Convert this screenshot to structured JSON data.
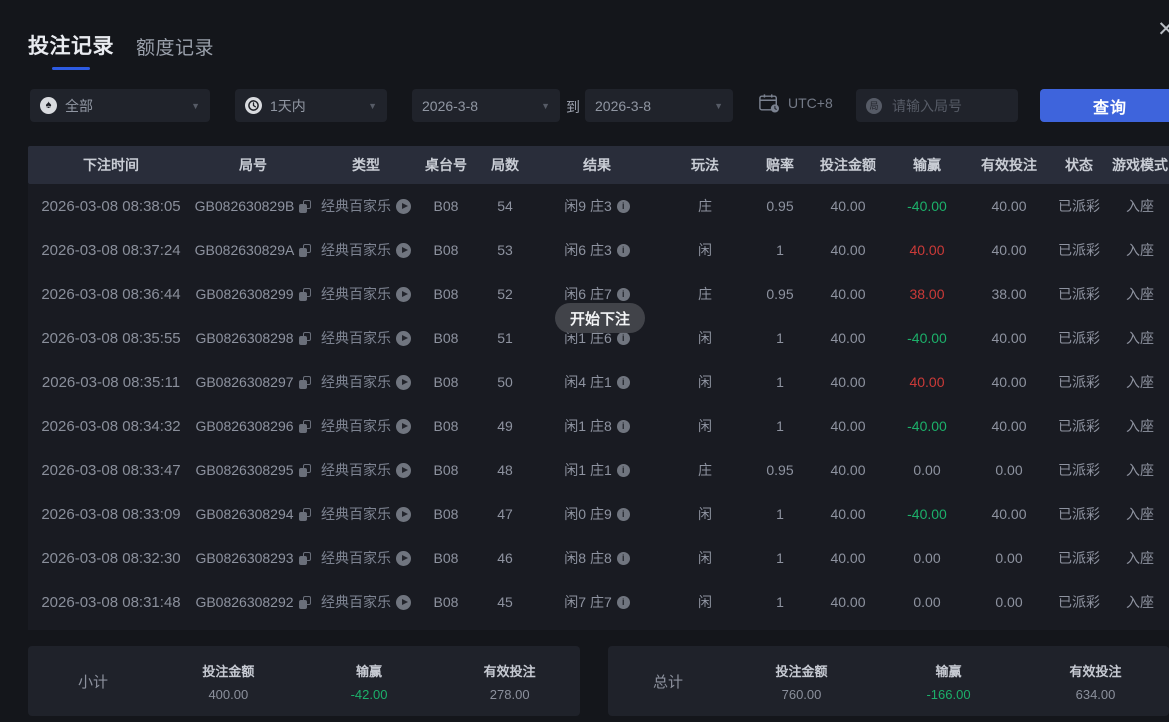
{
  "colors": {
    "accent": "#3e64dc",
    "accent-underline": "#2d5be2",
    "green": "#1cb06a",
    "red": "#cb3a38"
  },
  "window": {
    "close_glyph": "✕"
  },
  "tabs": [
    {
      "label": "投注记录",
      "active": true
    },
    {
      "label": "额度记录",
      "active": false
    }
  ],
  "filters": {
    "category": {
      "value": "全部",
      "icon_glyph": "♠"
    },
    "time_range": {
      "value": "1天内"
    },
    "date_from": "2026-3-8",
    "to_label": "到",
    "date_to": "2026-3-8",
    "timezone": "UTC+8",
    "search_icon_glyph": "局",
    "search_placeholder": "请输入局号",
    "query_button": "查询",
    "caret_glyph": "▼"
  },
  "table": {
    "headers": [
      "下注时间",
      "局号",
      "类型",
      "桌台号",
      "局数",
      "结果",
      "玩法",
      "赔率",
      "投注金额",
      "输赢",
      "有效投注",
      "状态",
      "游戏模式"
    ],
    "rows": [
      {
        "time": "2026-03-08 08:38:05",
        "game_id": "GB082630829B",
        "type": "经典百家乐",
        "table_no": "B08",
        "round": "54",
        "result": "闲9 庄3",
        "play": "庄",
        "odds": "0.95",
        "bet": "40.00",
        "win": "-40.00",
        "win_color": "green",
        "valid": "40.00",
        "status": "已派彩",
        "mode": "入座"
      },
      {
        "time": "2026-03-08 08:37:24",
        "game_id": "GB082630829A",
        "type": "经典百家乐",
        "table_no": "B08",
        "round": "53",
        "result": "闲6 庄3",
        "play": "闲",
        "odds": "1",
        "bet": "40.00",
        "win": "40.00",
        "win_color": "red",
        "valid": "40.00",
        "status": "已派彩",
        "mode": "入座"
      },
      {
        "time": "2026-03-08 08:36:44",
        "game_id": "GB0826308299",
        "type": "经典百家乐",
        "table_no": "B08",
        "round": "52",
        "result": "闲6 庄7",
        "play": "庄",
        "odds": "0.95",
        "bet": "40.00",
        "win": "38.00",
        "win_color": "red",
        "valid": "38.00",
        "status": "已派彩",
        "mode": "入座"
      },
      {
        "time": "2026-03-08 08:35:55",
        "game_id": "GB0826308298",
        "type": "经典百家乐",
        "table_no": "B08",
        "round": "51",
        "result": "闲1 庄6",
        "play": "闲",
        "odds": "1",
        "bet": "40.00",
        "win": "-40.00",
        "win_color": "green",
        "valid": "40.00",
        "status": "已派彩",
        "mode": "入座"
      },
      {
        "time": "2026-03-08 08:35:11",
        "game_id": "GB0826308297",
        "type": "经典百家乐",
        "table_no": "B08",
        "round": "50",
        "result": "闲4 庄1",
        "play": "闲",
        "odds": "1",
        "bet": "40.00",
        "win": "40.00",
        "win_color": "red",
        "valid": "40.00",
        "status": "已派彩",
        "mode": "入座"
      },
      {
        "time": "2026-03-08 08:34:32",
        "game_id": "GB0826308296",
        "type": "经典百家乐",
        "table_no": "B08",
        "round": "49",
        "result": "闲1 庄8",
        "play": "闲",
        "odds": "1",
        "bet": "40.00",
        "win": "-40.00",
        "win_color": "green",
        "valid": "40.00",
        "status": "已派彩",
        "mode": "入座"
      },
      {
        "time": "2026-03-08 08:33:47",
        "game_id": "GB0826308295",
        "type": "经典百家乐",
        "table_no": "B08",
        "round": "48",
        "result": "闲1 庄1",
        "play": "庄",
        "odds": "0.95",
        "bet": "40.00",
        "win": "0.00",
        "win_color": "none",
        "valid": "0.00",
        "status": "已派彩",
        "mode": "入座"
      },
      {
        "time": "2026-03-08 08:33:09",
        "game_id": "GB0826308294",
        "type": "经典百家乐",
        "table_no": "B08",
        "round": "47",
        "result": "闲0 庄9",
        "play": "闲",
        "odds": "1",
        "bet": "40.00",
        "win": "-40.00",
        "win_color": "green",
        "valid": "40.00",
        "status": "已派彩",
        "mode": "入座"
      },
      {
        "time": "2026-03-08 08:32:30",
        "game_id": "GB0826308293",
        "type": "经典百家乐",
        "table_no": "B08",
        "round": "46",
        "result": "闲8 庄8",
        "play": "闲",
        "odds": "1",
        "bet": "40.00",
        "win": "0.00",
        "win_color": "none",
        "valid": "0.00",
        "status": "已派彩",
        "mode": "入座"
      },
      {
        "time": "2026-03-08 08:31:48",
        "game_id": "GB0826308292",
        "type": "经典百家乐",
        "table_no": "B08",
        "round": "45",
        "result": "闲7 庄7",
        "play": "闲",
        "odds": "1",
        "bet": "40.00",
        "win": "0.00",
        "win_color": "none",
        "valid": "0.00",
        "status": "已派彩",
        "mode": "入座"
      }
    ]
  },
  "tooltip": "开始下注",
  "summary": {
    "subtotal": {
      "label": "小计",
      "bet_label": "投注金额",
      "bet": "400.00",
      "win_label": "输赢",
      "win": "-42.00",
      "valid_label": "有效投注",
      "valid": "278.00"
    },
    "total": {
      "label": "总计",
      "bet_label": "投注金额",
      "bet": "760.00",
      "win_label": "输赢",
      "win": "-166.00",
      "valid_label": "有效投注",
      "valid": "634.00"
    }
  }
}
